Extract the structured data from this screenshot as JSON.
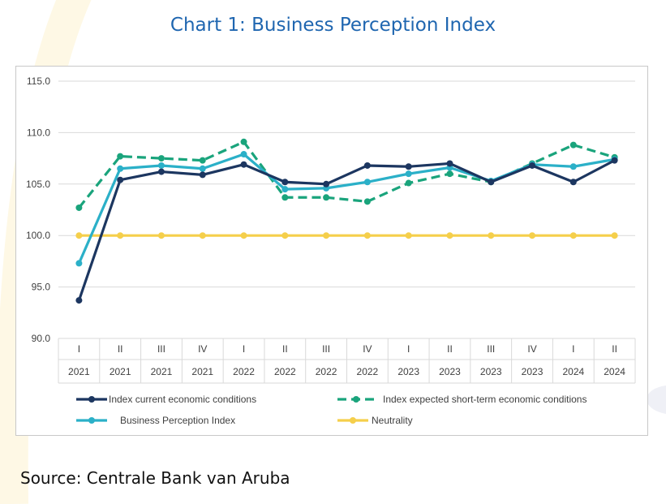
{
  "title": "Chart 1: Business Perception Index",
  "source": "Source: Centrale Bank van Aruba",
  "colors": {
    "current": "#1c3660",
    "expected": "#1aa47c",
    "bpi": "#2bb0c8",
    "neutrality": "#f5cf4b",
    "grid": "#d9d9d9",
    "title": "#1f66b0",
    "deco": "#fdf3d0"
  },
  "chart_data": {
    "type": "line",
    "categories": [
      {
        "quarter": "I",
        "year": "2021"
      },
      {
        "quarter": "II",
        "year": "2021"
      },
      {
        "quarter": "III",
        "year": "2021"
      },
      {
        "quarter": "IV",
        "year": "2021"
      },
      {
        "quarter": "I",
        "year": "2022"
      },
      {
        "quarter": "II",
        "year": "2022"
      },
      {
        "quarter": "III",
        "year": "2022"
      },
      {
        "quarter": "IV",
        "year": "2022"
      },
      {
        "quarter": "I",
        "year": "2023"
      },
      {
        "quarter": "II",
        "year": "2023"
      },
      {
        "quarter": "III",
        "year": "2023"
      },
      {
        "quarter": "IV",
        "year": "2023"
      },
      {
        "quarter": "I",
        "year": "2024"
      },
      {
        "quarter": "II",
        "year": "2024"
      }
    ],
    "ylim": [
      90,
      115
    ],
    "yticks": [
      "115.0",
      "110.0",
      "105.0",
      "100.0",
      "95.0",
      "90.0"
    ],
    "grid": true,
    "legend_position": "bottom",
    "series": [
      {
        "name": "Index current economic conditions",
        "key": "current",
        "dashed": false,
        "values": [
          93.7,
          105.4,
          106.2,
          105.9,
          106.9,
          105.2,
          105.0,
          106.8,
          106.7,
          107.0,
          105.2,
          106.8,
          105.2,
          107.3
        ]
      },
      {
        "name": "Index expected short-term economic conditions",
        "key": "expected",
        "dashed": true,
        "values": [
          102.7,
          107.7,
          107.5,
          107.3,
          109.1,
          103.7,
          103.7,
          103.3,
          105.1,
          106.0,
          105.2,
          107.0,
          108.8,
          107.6
        ]
      },
      {
        "name": "Business Perception Index",
        "key": "bpi",
        "dashed": false,
        "values": [
          97.3,
          106.5,
          106.8,
          106.5,
          107.9,
          104.5,
          104.6,
          105.2,
          106.0,
          106.6,
          105.3,
          106.9,
          106.7,
          107.4
        ]
      },
      {
        "name": "Neutrality",
        "key": "neutrality",
        "dashed": false,
        "values": [
          100,
          100,
          100,
          100,
          100,
          100,
          100,
          100,
          100,
          100,
          100,
          100,
          100,
          100
        ]
      }
    ]
  }
}
